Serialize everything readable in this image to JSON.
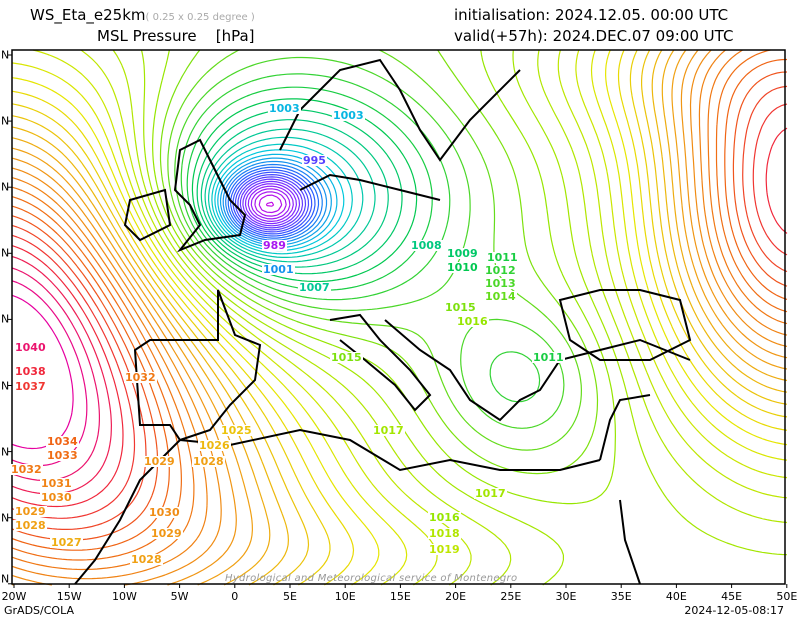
{
  "header": {
    "model": "WS_Eta_e25km",
    "resolution": "( 0.25 x 0.25 degree )",
    "field": "MSL Pressure",
    "units": "[hPa]",
    "init": "initialisation: 2024.12.05.   00:00 UTC",
    "valid": "valid(+57h): 2024.DEC.07 09:00 UTC"
  },
  "axes": {
    "lon_labels": [
      "20W",
      "15W",
      "10W",
      "5W",
      "0",
      "5E",
      "10E",
      "15E",
      "20E",
      "25E",
      "30E",
      "35E",
      "40E",
      "45E",
      "50E"
    ],
    "lat_labels": [
      "N",
      "N",
      "N",
      "N",
      "N",
      "N",
      "N",
      "N",
      "N"
    ]
  },
  "isobar_labels": [
    "1003",
    "1003",
    "995",
    "989",
    "1001",
    "1007",
    "1008",
    "1009",
    "1010",
    "1011",
    "1012",
    "1013",
    "1014",
    "1015",
    "1016",
    "1011",
    "1017",
    "1015",
    "1016",
    "1018",
    "1019",
    "1017",
    "1025",
    "1026",
    "1028",
    "1029",
    "1030",
    "1029",
    "1028",
    "1027",
    "1028",
    "1029",
    "1030",
    "1031",
    "1032",
    "1033",
    "1034",
    "1037",
    "1038",
    "1040",
    "1032"
  ],
  "footer": {
    "left": "GrADS/COLA",
    "right": "2024-12-05-08:17",
    "watermark": "Hydrological and Meteorological service of Montenegro"
  }
}
